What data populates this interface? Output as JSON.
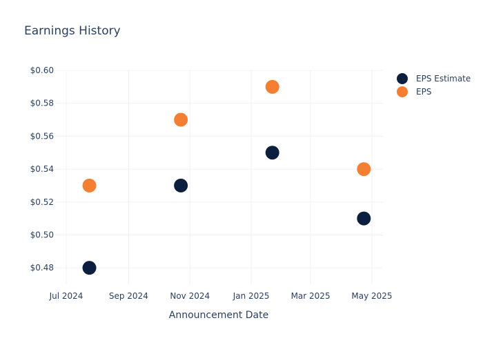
{
  "chart_data": {
    "type": "scatter",
    "title": "Earnings History",
    "xlabel": "Announcement Date",
    "ylabel": "",
    "x_ticks": [
      {
        "date": "2024-07-01",
        "label": "Jul 2024"
      },
      {
        "date": "2024-09-01",
        "label": "Sep 2024"
      },
      {
        "date": "2024-11-01",
        "label": "Nov 2024"
      },
      {
        "date": "2025-01-01",
        "label": "Jan 2025"
      },
      {
        "date": "2025-03-01",
        "label": "Mar 2025"
      },
      {
        "date": "2025-05-01",
        "label": "May 2025"
      }
    ],
    "xlim": [
      "2024-06-20",
      "2025-05-12"
    ],
    "y_ticks": [
      {
        "value": 0.48,
        "label": "$0.48"
      },
      {
        "value": 0.5,
        "label": "$0.50"
      },
      {
        "value": 0.52,
        "label": "$0.52"
      },
      {
        "value": 0.54,
        "label": "$0.54"
      },
      {
        "value": 0.56,
        "label": "$0.56"
      },
      {
        "value": 0.58,
        "label": "$0.58"
      },
      {
        "value": 0.6,
        "label": "$0.60"
      }
    ],
    "ylim": [
      0.47,
      0.6
    ],
    "grid": true,
    "legend_position": "top-right",
    "series": [
      {
        "name": "EPS Estimate",
        "color": "#0d1f3f",
        "points": [
          {
            "x": "2024-07-24",
            "y": 0.48
          },
          {
            "x": "2024-10-23",
            "y": 0.53
          },
          {
            "x": "2025-01-22",
            "y": 0.55
          },
          {
            "x": "2025-04-23",
            "y": 0.51
          }
        ]
      },
      {
        "name": "EPS",
        "color": "#f47f33",
        "points": [
          {
            "x": "2024-07-24",
            "y": 0.53
          },
          {
            "x": "2024-10-23",
            "y": 0.57
          },
          {
            "x": "2025-01-22",
            "y": 0.59
          },
          {
            "x": "2025-04-23",
            "y": 0.54
          }
        ]
      }
    ]
  }
}
